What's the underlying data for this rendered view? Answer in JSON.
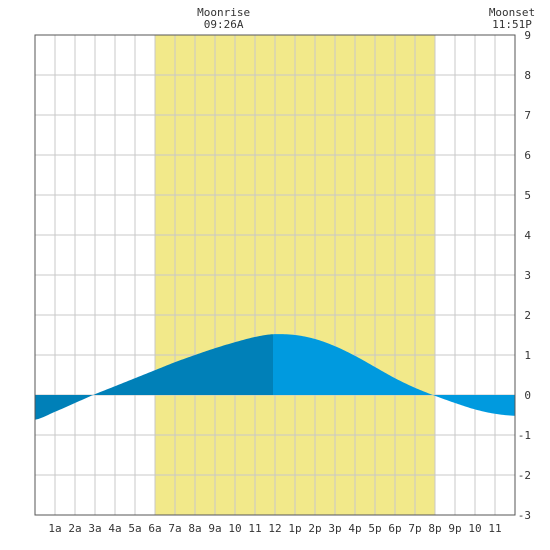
{
  "chart_data": {
    "type": "area",
    "x_tick_labels": [
      "1a",
      "2a",
      "3a",
      "4a",
      "5a",
      "6a",
      "7a",
      "8a",
      "9a",
      "10",
      "11",
      "12",
      "1p",
      "2p",
      "3p",
      "4p",
      "5p",
      "6p",
      "7p",
      "8p",
      "9p",
      "10",
      "11"
    ],
    "x_ticks_hours": [
      1,
      2,
      3,
      4,
      5,
      6,
      7,
      8,
      9,
      10,
      11,
      12,
      13,
      14,
      15,
      16,
      17,
      18,
      19,
      20,
      21,
      22,
      23
    ],
    "xlim_hours": [
      0,
      24
    ],
    "ylim": [
      -3,
      9
    ],
    "y_ticks": [
      -3,
      -2,
      -1,
      0,
      1,
      2,
      3,
      4,
      5,
      6,
      7,
      8,
      9
    ],
    "grid": true,
    "daylight_hours": [
      6,
      20
    ],
    "high_tide_hour": 11.9,
    "series": [
      {
        "x": [
          0,
          1,
          2,
          3,
          4,
          5,
          6,
          7,
          8,
          9,
          10,
          11,
          11.9,
          13,
          14,
          15,
          16,
          17,
          18,
          19,
          20,
          21,
          22,
          23,
          24
        ],
        "values": [
          -0.62,
          -0.42,
          -0.2,
          0.02,
          0.22,
          0.42,
          0.62,
          0.82,
          1.0,
          1.17,
          1.32,
          1.45,
          1.52,
          1.5,
          1.4,
          1.22,
          0.98,
          0.7,
          0.42,
          0.18,
          -0.02,
          -0.2,
          -0.36,
          -0.47,
          -0.52
        ]
      }
    ],
    "annotations": [
      {
        "label": "Moonrise",
        "time": "09:26A",
        "hour": 9.43
      },
      {
        "label": "Moonset",
        "time": "11:51P",
        "hour": 23.85
      }
    ],
    "colors": {
      "daylight": "#F2E98A",
      "tide_before_high": "#0080B8",
      "tide_after_high": "#009ADF",
      "grid": "#C8C8C8",
      "axis": "#555555"
    }
  }
}
